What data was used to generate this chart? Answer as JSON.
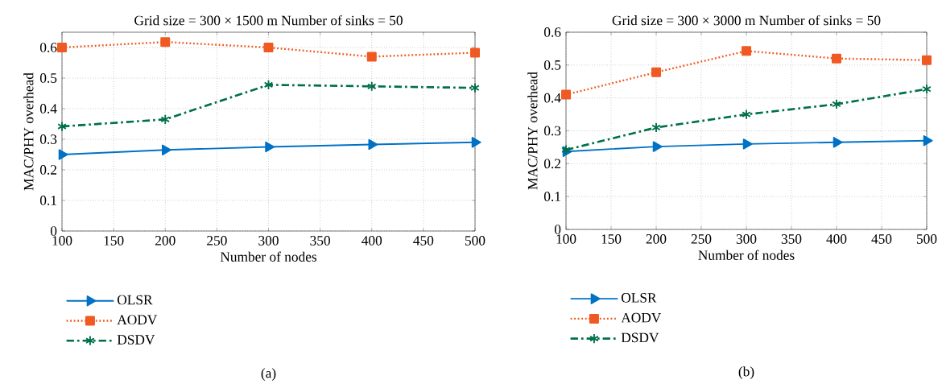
{
  "chart_data": [
    {
      "type": "line",
      "title": "Grid size = 300 × 1500 m Number of sinks = 50",
      "xlabel": "Number of nodes",
      "ylabel": "MAC/PHY overhead",
      "x": [
        100,
        200,
        300,
        400,
        500
      ],
      "series": [
        {
          "name": "OLSR",
          "color": "#0072c6",
          "marker": "triangle",
          "line_style": "solid",
          "values": [
            0.25,
            0.265,
            0.275,
            0.283,
            0.29
          ]
        },
        {
          "name": "AODV",
          "color": "#f05a22",
          "marker": "square",
          "line_style": "dotted",
          "values": [
            0.6,
            0.618,
            0.6,
            0.57,
            0.583
          ]
        },
        {
          "name": "DSDV",
          "color": "#00704a",
          "marker": "cross",
          "line_style": "dashed",
          "values": [
            0.342,
            0.365,
            0.478,
            0.473,
            0.468
          ]
        }
      ],
      "xlim": [
        100,
        500
      ],
      "xticks": [
        100,
        150,
        200,
        250,
        300,
        350,
        400,
        450,
        500
      ],
      "ylim": [
        0,
        0.65
      ],
      "yticks": [
        0,
        0.1,
        0.2,
        0.3,
        0.4,
        0.5,
        0.6
      ],
      "grid": true,
      "legend": "bottom",
      "annotations": [
        "(a)"
      ]
    },
    {
      "type": "line",
      "title": "Grid size = 300 × 3000 m Number of sinks = 50",
      "xlabel": "Number of nodes",
      "ylabel": "MAC/PHY overhead",
      "x": [
        100,
        200,
        300,
        400,
        500
      ],
      "series": [
        {
          "name": "OLSR",
          "color": "#0072c6",
          "marker": "triangle",
          "line_style": "solid",
          "values": [
            0.237,
            0.252,
            0.26,
            0.265,
            0.27
          ]
        },
        {
          "name": "AODV",
          "color": "#f05a22",
          "marker": "square",
          "line_style": "dotted",
          "values": [
            0.41,
            0.478,
            0.543,
            0.52,
            0.515
          ]
        },
        {
          "name": "DSDV",
          "color": "#00704a",
          "marker": "cross",
          "line_style": "dashed",
          "values": [
            0.242,
            0.31,
            0.35,
            0.381,
            0.427
          ]
        }
      ],
      "xlim": [
        100,
        500
      ],
      "xticks": [
        100,
        150,
        200,
        250,
        300,
        350,
        400,
        450,
        500
      ],
      "ylim": [
        0,
        0.6
      ],
      "yticks": [
        0,
        0.1,
        0.2,
        0.3,
        0.4,
        0.5,
        0.6
      ],
      "grid": true,
      "legend": "bottom",
      "annotations": [
        "(b)"
      ]
    }
  ]
}
